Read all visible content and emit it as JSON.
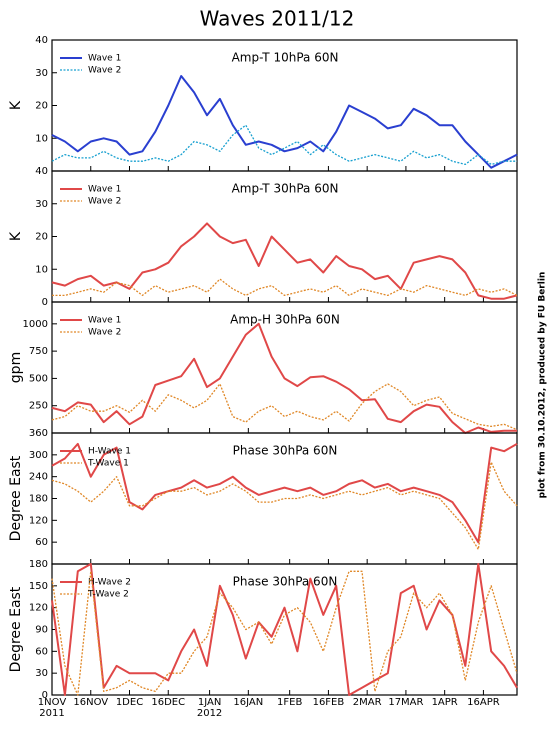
{
  "title": "Waves 2011/12",
  "note": "plot from 30.10.2012, produced by FU Berlin",
  "chart_data": [
    {
      "type": "line",
      "title": "Amp-T 10hPa 60N",
      "ylabel": "K",
      "xlim": [
        0,
        180
      ],
      "ylim": [
        0,
        40
      ],
      "yticks": [
        10,
        20,
        30,
        40
      ],
      "x": [
        0,
        5,
        10,
        15,
        20,
        25,
        30,
        35,
        40,
        45,
        50,
        55,
        60,
        65,
        70,
        75,
        80,
        85,
        90,
        95,
        100,
        105,
        110,
        115,
        120,
        125,
        130,
        135,
        140,
        145,
        150,
        155,
        160,
        165,
        170,
        175,
        180
      ],
      "series": [
        {
          "name": "Wave 1",
          "color": "#2a3fd0",
          "dash": false,
          "values": [
            11,
            9,
            6,
            9,
            10,
            9,
            5,
            6,
            12,
            20,
            29,
            24,
            17,
            22,
            14,
            8,
            9,
            8,
            6,
            7,
            9,
            6,
            12,
            20,
            18,
            16,
            13,
            14,
            19,
            17,
            14,
            14,
            9,
            5,
            1,
            3,
            5
          ]
        },
        {
          "name": "Wave 2",
          "color": "#18a0d0",
          "dash": true,
          "values": [
            3,
            5,
            4,
            4,
            6,
            4,
            3,
            3,
            4,
            3,
            5,
            9,
            8,
            6,
            11,
            14,
            7,
            5,
            7,
            9,
            5,
            8,
            5,
            3,
            4,
            5,
            4,
            3,
            6,
            4,
            5,
            3,
            2,
            5,
            2,
            3,
            3
          ]
        }
      ]
    },
    {
      "type": "line",
      "title": "Amp-T 30hPa 60N",
      "ylabel": "K",
      "xlim": [
        0,
        180
      ],
      "ylim": [
        0,
        40
      ],
      "yticks": [
        0,
        10,
        20,
        30,
        40
      ],
      "x": [
        0,
        5,
        10,
        15,
        20,
        25,
        30,
        35,
        40,
        45,
        50,
        55,
        60,
        65,
        70,
        75,
        80,
        85,
        90,
        95,
        100,
        105,
        110,
        115,
        120,
        125,
        130,
        135,
        140,
        145,
        150,
        155,
        160,
        165,
        170,
        175,
        180
      ],
      "series": [
        {
          "name": "Wave 1",
          "color": "#e04848",
          "dash": false,
          "values": [
            6,
            5,
            7,
            8,
            5,
            6,
            4,
            9,
            10,
            12,
            17,
            20,
            24,
            20,
            18,
            19,
            11,
            20,
            16,
            12,
            13,
            9,
            14,
            11,
            10,
            7,
            8,
            4,
            12,
            13,
            14,
            13,
            9,
            2,
            1,
            1,
            2
          ]
        },
        {
          "name": "Wave 2",
          "color": "#e08828",
          "dash": true,
          "values": [
            2,
            2,
            3,
            4,
            3,
            6,
            5,
            2,
            5,
            3,
            4,
            5,
            3,
            7,
            4,
            2,
            4,
            5,
            2,
            3,
            4,
            3,
            5,
            2,
            4,
            3,
            2,
            4,
            3,
            5,
            4,
            3,
            2,
            4,
            3,
            4,
            2
          ]
        }
      ]
    },
    {
      "type": "line",
      "title": "Amp-H 30hPa 60N",
      "ylabel": "gpm",
      "xlim": [
        0,
        180
      ],
      "ylim": [
        0,
        1200
      ],
      "yticks": [
        250,
        500,
        750,
        1000
      ],
      "x": [
        0,
        5,
        10,
        15,
        20,
        25,
        30,
        35,
        40,
        45,
        50,
        55,
        60,
        65,
        70,
        75,
        80,
        85,
        90,
        95,
        100,
        105,
        110,
        115,
        120,
        125,
        130,
        135,
        140,
        145,
        150,
        155,
        160,
        165,
        170,
        175,
        180
      ],
      "series": [
        {
          "name": "Wave 1",
          "color": "#e04848",
          "dash": false,
          "values": [
            230,
            200,
            280,
            260,
            100,
            200,
            80,
            150,
            440,
            480,
            520,
            680,
            420,
            500,
            700,
            900,
            1000,
            700,
            500,
            430,
            510,
            520,
            470,
            400,
            300,
            310,
            130,
            100,
            200,
            260,
            240,
            100,
            0,
            50,
            10,
            20,
            20
          ]
        },
        {
          "name": "Wave 2",
          "color": "#e08828",
          "dash": true,
          "values": [
            120,
            150,
            250,
            200,
            200,
            250,
            190,
            300,
            200,
            350,
            300,
            230,
            300,
            450,
            150,
            100,
            200,
            250,
            150,
            200,
            150,
            120,
            200,
            110,
            270,
            380,
            450,
            380,
            250,
            300,
            330,
            180,
            130,
            80,
            60,
            80,
            30
          ]
        }
      ]
    },
    {
      "type": "line",
      "title": "Phase 30hPa 60N",
      "ylabel": "Degree East",
      "xlim": [
        0,
        180
      ],
      "ylim": [
        0,
        360
      ],
      "yticks": [
        60,
        120,
        180,
        240,
        300,
        360
      ],
      "x": [
        0,
        5,
        10,
        15,
        20,
        25,
        30,
        35,
        40,
        45,
        50,
        55,
        60,
        65,
        70,
        75,
        80,
        85,
        90,
        95,
        100,
        105,
        110,
        115,
        120,
        125,
        130,
        135,
        140,
        145,
        150,
        155,
        160,
        165,
        170,
        175,
        180
      ],
      "series": [
        {
          "name": "H-Wave 1",
          "color": "#e04848",
          "dash": false,
          "values": [
            270,
            290,
            330,
            240,
            300,
            320,
            170,
            150,
            190,
            200,
            210,
            230,
            210,
            220,
            240,
            210,
            190,
            200,
            210,
            200,
            210,
            190,
            200,
            220,
            230,
            210,
            220,
            200,
            210,
            200,
            190,
            170,
            120,
            60,
            320,
            310,
            330
          ]
        },
        {
          "name": "T-Wave 1",
          "color": "#e08828",
          "dash": true,
          "values": [
            230,
            220,
            200,
            170,
            200,
            240,
            160,
            160,
            180,
            200,
            200,
            210,
            190,
            200,
            220,
            200,
            170,
            170,
            180,
            180,
            190,
            180,
            190,
            200,
            190,
            200,
            210,
            190,
            200,
            190,
            180,
            140,
            100,
            40,
            280,
            200,
            160
          ]
        }
      ]
    },
    {
      "type": "line",
      "title": "Phase 30hPa 60N",
      "ylabel": "Degree East",
      "xlim": [
        0,
        180
      ],
      "ylim": [
        0,
        180
      ],
      "yticks": [
        0,
        30,
        60,
        90,
        120,
        150,
        180
      ],
      "xticks": [
        {
          "value": 0,
          "label": "1NOV",
          "year": "2011"
        },
        {
          "value": 15,
          "label": "16NOV"
        },
        {
          "value": 30,
          "label": "1DEC"
        },
        {
          "value": 45,
          "label": "16DEC"
        },
        {
          "value": 61,
          "label": "1JAN",
          "year": "2012"
        },
        {
          "value": 76,
          "label": "16JAN"
        },
        {
          "value": 92,
          "label": "1FEB"
        },
        {
          "value": 107,
          "label": "16FEB"
        },
        {
          "value": 122,
          "label": "2MAR"
        },
        {
          "value": 137,
          "label": "17MAR"
        },
        {
          "value": 152,
          "label": "1APR"
        },
        {
          "value": 167,
          "label": "16APR"
        }
      ],
      "x": [
        0,
        5,
        10,
        15,
        20,
        25,
        30,
        35,
        40,
        45,
        50,
        55,
        60,
        65,
        70,
        75,
        80,
        85,
        90,
        95,
        100,
        105,
        110,
        115,
        120,
        125,
        130,
        135,
        140,
        145,
        150,
        155,
        160,
        165,
        170,
        175,
        180
      ],
      "series": [
        {
          "name": "H-Wave 2",
          "color": "#e04848",
          "dash": false,
          "values": [
            130,
            0,
            170,
            180,
            10,
            40,
            30,
            30,
            30,
            20,
            60,
            90,
            40,
            150,
            110,
            50,
            100,
            80,
            120,
            60,
            160,
            110,
            150,
            0,
            10,
            20,
            30,
            140,
            150,
            90,
            130,
            110,
            40,
            180,
            60,
            40,
            10
          ]
        },
        {
          "name": "T-Wave 2",
          "color": "#e08828",
          "dash": true,
          "values": [
            160,
            40,
            0,
            170,
            5,
            10,
            20,
            10,
            5,
            30,
            30,
            60,
            80,
            140,
            120,
            90,
            100,
            70,
            110,
            120,
            100,
            60,
            120,
            170,
            170,
            5,
            60,
            80,
            140,
            120,
            140,
            110,
            20,
            100,
            150,
            90,
            30
          ]
        }
      ]
    }
  ]
}
